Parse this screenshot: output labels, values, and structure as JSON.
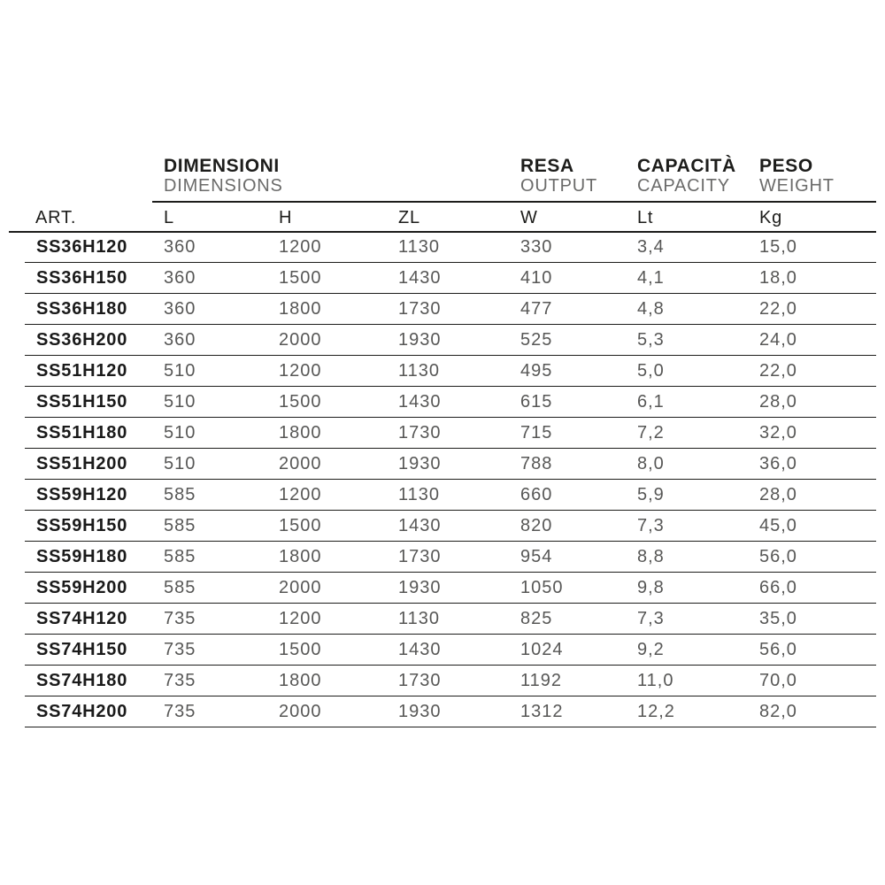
{
  "header": {
    "art_label": "ART.",
    "groups": [
      {
        "it": "DIMENSIONI",
        "en": "DIMENSIONS"
      },
      {
        "it": "RESA",
        "en": "OUTPUT"
      },
      {
        "it": "CAPACITÀ",
        "en": "CAPACITY"
      },
      {
        "it": "PESO",
        "en": "WEIGHT"
      }
    ],
    "sub": {
      "l": "L",
      "h": "H",
      "zl": "ZL",
      "w": "W",
      "lt": "Lt",
      "kg": "Kg"
    }
  },
  "rows": [
    {
      "art": "SS36H120",
      "l": "360",
      "h": "1200",
      "zl": "1130",
      "w": "330",
      "lt": "3,4",
      "kg": "15,0"
    },
    {
      "art": "SS36H150",
      "l": "360",
      "h": "1500",
      "zl": "1430",
      "w": "410",
      "lt": "4,1",
      "kg": "18,0"
    },
    {
      "art": "SS36H180",
      "l": "360",
      "h": "1800",
      "zl": "1730",
      "w": "477",
      "lt": "4,8",
      "kg": "22,0"
    },
    {
      "art": "SS36H200",
      "l": "360",
      "h": "2000",
      "zl": "1930",
      "w": "525",
      "lt": "5,3",
      "kg": "24,0"
    },
    {
      "art": "SS51H120",
      "l": "510",
      "h": "1200",
      "zl": "1130",
      "w": "495",
      "lt": "5,0",
      "kg": "22,0"
    },
    {
      "art": "SS51H150",
      "l": "510",
      "h": "1500",
      "zl": "1430",
      "w": "615",
      "lt": "6,1",
      "kg": "28,0"
    },
    {
      "art": "SS51H180",
      "l": "510",
      "h": "1800",
      "zl": "1730",
      "w": "715",
      "lt": "7,2",
      "kg": "32,0"
    },
    {
      "art": "SS51H200",
      "l": "510",
      "h": "2000",
      "zl": "1930",
      "w": "788",
      "lt": "8,0",
      "kg": "36,0"
    },
    {
      "art": "SS59H120",
      "l": "585",
      "h": "1200",
      "zl": "1130",
      "w": "660",
      "lt": "5,9",
      "kg": "28,0"
    },
    {
      "art": "SS59H150",
      "l": "585",
      "h": "1500",
      "zl": "1430",
      "w": "820",
      "lt": "7,3",
      "kg": "45,0"
    },
    {
      "art": "SS59H180",
      "l": "585",
      "h": "1800",
      "zl": "1730",
      "w": "954",
      "lt": "8,8",
      "kg": "56,0"
    },
    {
      "art": "SS59H200",
      "l": "585",
      "h": "2000",
      "zl": "1930",
      "w": "1050",
      "lt": "9,8",
      "kg": "66,0"
    },
    {
      "art": "SS74H120",
      "l": "735",
      "h": "1200",
      "zl": "1130",
      "w": "825",
      "lt": "7,3",
      "kg": "35,0"
    },
    {
      "art": "SS74H150",
      "l": "735",
      "h": "1500",
      "zl": "1430",
      "w": "1024",
      "lt": "9,2",
      "kg": "56,0"
    },
    {
      "art": "SS74H180",
      "l": "735",
      "h": "1800",
      "zl": "1730",
      "w": "1192",
      "lt": "11,0",
      "kg": "70,0"
    },
    {
      "art": "SS74H200",
      "l": "735",
      "h": "2000",
      "zl": "1930",
      "w": "1312",
      "lt": "12,2",
      "kg": "82,0"
    }
  ],
  "colors": {
    "ink": "#1d1d1b",
    "value_gray": "#575756",
    "label_gray": "#6b6b6a"
  }
}
